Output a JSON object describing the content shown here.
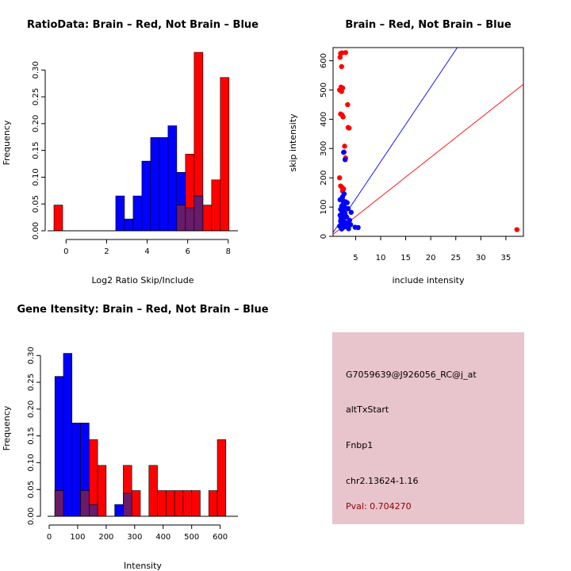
{
  "chart_data": [
    {
      "type": "histogram",
      "title": "RatioData: Brain – Red, Not Brain – Blue",
      "xlabel": "Log2 Ratio Skip/Include",
      "ylabel": "Frequency",
      "xlim": [
        -0.6,
        8.4
      ],
      "ylim": [
        0,
        0.33
      ],
      "xticks": [
        "0",
        "2",
        "4",
        "6",
        "8"
      ],
      "yticks": [
        "0.00",
        "0.05",
        "0.10",
        "0.15",
        "0.20",
        "0.25",
        "0.30"
      ],
      "bin_width": 0.43,
      "series": [
        {
          "name": "Not Brain",
          "color": "#0000ff",
          "bins": [
            [
              2.45,
              0.065
            ],
            [
              2.88,
              0.022
            ],
            [
              3.31,
              0.065
            ],
            [
              3.74,
              0.13
            ],
            [
              4.17,
              0.174
            ],
            [
              4.6,
              0.174
            ],
            [
              5.03,
              0.196
            ],
            [
              5.46,
              0.109
            ],
            [
              5.89,
              0.043
            ],
            [
              6.32,
              0.065
            ]
          ]
        },
        {
          "name": "Brain",
          "color": "#ff0000",
          "bins": [
            [
              -0.6,
              0.048
            ],
            [
              5.46,
              0.048
            ],
            [
              5.89,
              0.143
            ],
            [
              6.32,
              0.333
            ],
            [
              6.75,
              0.048
            ],
            [
              7.18,
              0.095
            ],
            [
              7.61,
              0.286
            ]
          ]
        }
      ]
    },
    {
      "type": "scatter",
      "title": "Brain – Red, Not Brain – Blue",
      "xlabel": "include intensity",
      "ylabel": "skip intensity",
      "xlim": [
        0.5,
        38.5
      ],
      "ylim": [
        0,
        645
      ],
      "xticks": [
        "5",
        "10",
        "15",
        "20",
        "25",
        "30",
        "35"
      ],
      "yticks": [
        "0",
        "100",
        "200",
        "300",
        "400",
        "500",
        "600"
      ],
      "reference_lines": [
        {
          "name": "not-brain-line",
          "color": "#0000ff",
          "intercept": 0,
          "slope": 25.5
        },
        {
          "name": "brain-line",
          "color": "#ff0000",
          "intercept": 0,
          "slope": 13.5
        }
      ],
      "series": [
        {
          "name": "Brain",
          "color": "#ff0000",
          "points": [
            [
              2,
              625
            ],
            [
              2.3,
              627
            ],
            [
              3,
              628
            ],
            [
              1.9,
              612
            ],
            [
              2.2,
              580
            ],
            [
              2.1,
              510
            ],
            [
              2.4,
              507
            ],
            [
              1.8,
              500
            ],
            [
              2.2,
              495
            ],
            [
              3.4,
              450
            ],
            [
              2,
              418
            ],
            [
              2.3,
              415
            ],
            [
              2.5,
              408
            ],
            [
              3.5,
              372
            ],
            [
              3.7,
              370
            ],
            [
              2.8,
              308
            ],
            [
              2.7,
              288
            ],
            [
              3,
              268
            ],
            [
              1.8,
              200
            ],
            [
              2,
              172
            ],
            [
              2.3,
              167
            ],
            [
              2.6,
              162
            ],
            [
              2.4,
              155
            ],
            [
              37.2,
              23
            ]
          ]
        },
        {
          "name": "Not Brain",
          "color": "#0000ff",
          "points": [
            [
              2.6,
              287
            ],
            [
              2.9,
              262
            ],
            [
              2.7,
              145
            ],
            [
              2.4,
              135
            ],
            [
              2.3,
              128
            ],
            [
              1.9,
              125
            ],
            [
              2.6,
              120
            ],
            [
              3,
              118
            ],
            [
              3.3,
              115
            ],
            [
              2.5,
              110
            ],
            [
              2.2,
              103
            ],
            [
              2.8,
              100
            ],
            [
              3.5,
              95
            ],
            [
              2,
              92
            ],
            [
              2.4,
              88
            ],
            [
              2.7,
              85
            ],
            [
              4.1,
              82
            ],
            [
              2.3,
              80
            ],
            [
              2.9,
              76
            ],
            [
              1.9,
              72
            ],
            [
              2.6,
              70
            ],
            [
              3.2,
              66
            ],
            [
              2.1,
              62
            ],
            [
              2.5,
              58
            ],
            [
              3.8,
              55
            ],
            [
              2,
              52
            ],
            [
              2.9,
              48
            ],
            [
              2.3,
              45
            ],
            [
              3.4,
              42
            ],
            [
              4,
              40
            ],
            [
              2.6,
              36
            ],
            [
              1.8,
              35
            ],
            [
              3.1,
              33
            ],
            [
              4.9,
              31
            ],
            [
              5.5,
              30
            ],
            [
              2.4,
              28
            ],
            [
              3.6,
              26
            ],
            [
              2.2,
              25
            ]
          ]
        }
      ]
    },
    {
      "type": "histogram",
      "title": "Gene Itensity: Brain – Red, Not Brain – Blue",
      "xlabel": "Intensity",
      "ylabel": "Frequency",
      "xlim": [
        0,
        640
      ],
      "ylim": [
        0,
        0.33
      ],
      "xticks": [
        "0",
        "100",
        "200",
        "300",
        "400",
        "500",
        "600"
      ],
      "yticks": [
        "0.00",
        "0.05",
        "0.10",
        "0.15",
        "0.20",
        "0.25",
        "0.30"
      ],
      "bin_width": 30,
      "series": [
        {
          "name": "Not Brain",
          "color": "#0000ff",
          "bins": [
            [
              20,
              0.261
            ],
            [
              50,
              0.304
            ],
            [
              80,
              0.174
            ],
            [
              110,
              0.174
            ],
            [
              140,
              0.022
            ],
            [
              230,
              0.022
            ],
            [
              260,
              0.043
            ]
          ]
        },
        {
          "name": "Brain",
          "color": "#ff0000",
          "bins": [
            [
              20,
              0.048
            ],
            [
              110,
              0.048
            ],
            [
              140,
              0.143
            ],
            [
              170,
              0.095
            ],
            [
              260,
              0.095
            ],
            [
              290,
              0.048
            ],
            [
              350,
              0.095
            ],
            [
              380,
              0.048
            ],
            [
              410,
              0.048
            ],
            [
              440,
              0.048
            ],
            [
              470,
              0.048
            ],
            [
              500,
              0.048
            ],
            [
              560,
              0.048
            ],
            [
              590,
              0.143
            ]
          ]
        }
      ]
    }
  ],
  "info_panel": {
    "probe_id": "G7059639@J926056_RC@j_at",
    "event_type": "altTxStart",
    "gene": "Fnbp1",
    "location": "chr2.13624-1.16",
    "pval": "Pval: 0.704270",
    "background_color": "#e8c4cc",
    "pval_color": "#8b0000"
  },
  "colors": {
    "brain": "#ff0000",
    "not_brain": "#0000ff",
    "overlap": "#6a1a6a"
  }
}
